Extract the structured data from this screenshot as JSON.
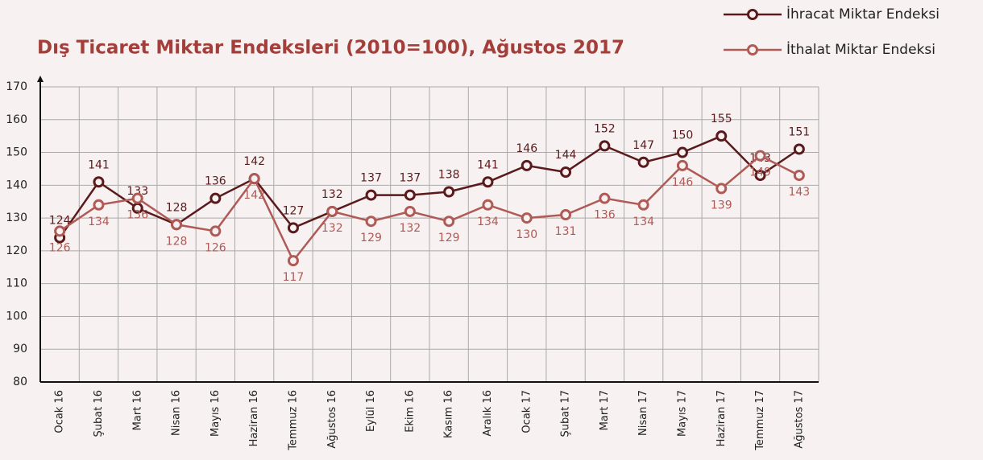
{
  "chart_data": {
    "type": "line",
    "title": "Dış Ticaret Miktar Endeksleri (2010=100), Ağustos 2017",
    "categories": [
      "Ocak 16",
      "Şubat 16",
      "Mart 16",
      "Nisan 16",
      "Mayıs 16",
      "Haziran 16",
      "Temmuz 16",
      "Ağustos 16",
      "Eylül 16",
      "Ekim 16",
      "Kasım 16",
      "Aralık 16",
      "Ocak 17",
      "Şubat 17",
      "Mart 17",
      "Nisan 17",
      "Mayıs 17",
      "Haziran 17",
      "Temmuz 17",
      "Ağustos 17"
    ],
    "series": [
      {
        "name": "İhracat Miktar Endeksi",
        "color": "#5a1a1c",
        "values": [
          124,
          141,
          133,
          128,
          136,
          142,
          127,
          132,
          137,
          137,
          138,
          141,
          146,
          144,
          152,
          147,
          150,
          155,
          143,
          151
        ]
      },
      {
        "name": "İthalat Miktar Endeksi",
        "color": "#b05a56",
        "values": [
          126,
          134,
          136,
          128,
          126,
          142,
          117,
          132,
          129,
          132,
          129,
          134,
          130,
          131,
          136,
          134,
          146,
          139,
          149,
          143
        ]
      }
    ],
    "ylim": [
      80,
      170
    ],
    "yticks": [
      80,
      90,
      100,
      110,
      120,
      130,
      140,
      150,
      160,
      170
    ],
    "grid": true,
    "legend": "top-right"
  }
}
